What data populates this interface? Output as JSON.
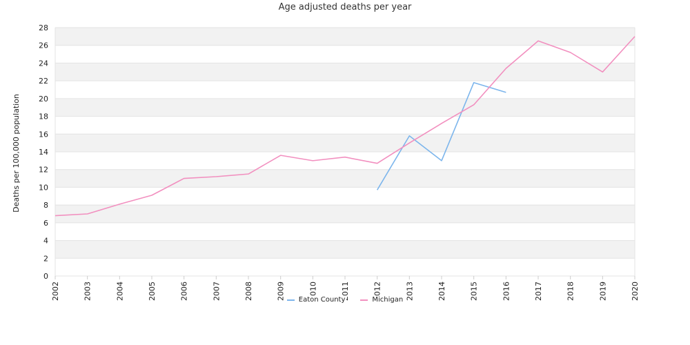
{
  "chart_data": {
    "type": "line",
    "title": "Age adjusted deaths per year",
    "ylabel": "Deaths per 100,000 population",
    "xlabel": "",
    "x": [
      "2002",
      "2003",
      "2004",
      "2005",
      "2006",
      "2007",
      "2008",
      "2009",
      "2010",
      "2011",
      "2012",
      "2013",
      "2014",
      "2015",
      "2016",
      "2017",
      "2018",
      "2019",
      "2020"
    ],
    "ylim": [
      0,
      28
    ],
    "yticks": [
      0,
      2,
      4,
      6,
      8,
      10,
      12,
      14,
      16,
      18,
      20,
      22,
      24,
      26,
      28
    ],
    "grid": true,
    "legend_position": "bottom",
    "series": [
      {
        "name": "Eaton County",
        "color": "#7cb5ec",
        "values": [
          null,
          null,
          null,
          null,
          null,
          null,
          null,
          null,
          null,
          null,
          9.7,
          15.8,
          13.0,
          21.8,
          20.7,
          null,
          null,
          null,
          null
        ]
      },
      {
        "name": "Michigan",
        "color": "#f28fbf",
        "values": [
          6.8,
          7.0,
          8.1,
          9.1,
          11.0,
          11.2,
          11.5,
          13.6,
          13.0,
          13.4,
          12.7,
          15.0,
          17.2,
          19.3,
          23.4,
          26.5,
          25.2,
          23.0,
          27.0
        ]
      }
    ]
  }
}
